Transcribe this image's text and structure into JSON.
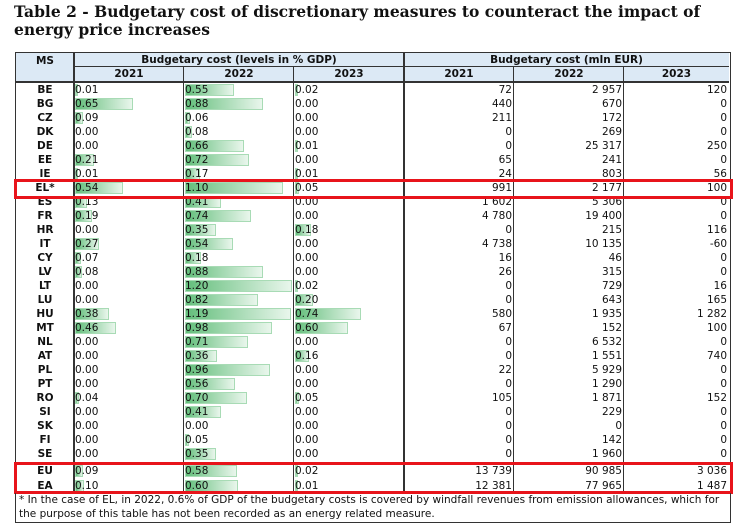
{
  "title": "Table 2 - Budgetary cost of discretionary measures to counteract the impact of energy price increases",
  "headers": {
    "ms": "MS",
    "pct_group": "Budgetary cost (levels in % GDP)",
    "mln_group": "Budgetary cost (mln EUR)",
    "years": [
      "2021",
      "2022",
      "2023"
    ]
  },
  "accent_color": "#e8141b",
  "bar_color": "#63be7b",
  "rows": [
    {
      "ms": "BE",
      "pct": [
        "0.01",
        "0.55",
        "0.02"
      ],
      "mln": [
        "72",
        "2 957",
        "120"
      ]
    },
    {
      "ms": "BG",
      "pct": [
        "0.65",
        "0.88",
        "0.00"
      ],
      "mln": [
        "440",
        "670",
        "0"
      ]
    },
    {
      "ms": "CZ",
      "pct": [
        "0.09",
        "0.06",
        "0.00"
      ],
      "mln": [
        "211",
        "172",
        "0"
      ]
    },
    {
      "ms": "DK",
      "pct": [
        "0.00",
        "0.08",
        "0.00"
      ],
      "mln": [
        "0",
        "269",
        "0"
      ]
    },
    {
      "ms": "DE",
      "pct": [
        "0.00",
        "0.66",
        "0.01"
      ],
      "mln": [
        "0",
        "25 317",
        "250"
      ]
    },
    {
      "ms": "EE",
      "pct": [
        "0.21",
        "0.72",
        "0.00"
      ],
      "mln": [
        "65",
        "241",
        "0"
      ]
    },
    {
      "ms": "IE",
      "pct": [
        "0.01",
        "0.17",
        "0.01"
      ],
      "mln": [
        "24",
        "803",
        "56"
      ]
    },
    {
      "ms": "EL*",
      "pct": [
        "0.54",
        "1.10",
        "0.05"
      ],
      "mln": [
        "991",
        "2 177",
        "100"
      ]
    },
    {
      "ms": "ES",
      "pct": [
        "0.13",
        "0.41",
        "0.00"
      ],
      "mln": [
        "1 602",
        "5 306",
        "0"
      ]
    },
    {
      "ms": "FR",
      "pct": [
        "0.19",
        "0.74",
        "0.00"
      ],
      "mln": [
        "4 780",
        "19 400",
        "0"
      ]
    },
    {
      "ms": "HR",
      "pct": [
        "0.00",
        "0.35",
        "0.18"
      ],
      "mln": [
        "0",
        "215",
        "116"
      ]
    },
    {
      "ms": "IT",
      "pct": [
        "0.27",
        "0.54",
        "0.00"
      ],
      "mln": [
        "4 738",
        "10 135",
        "-60"
      ]
    },
    {
      "ms": "CY",
      "pct": [
        "0.07",
        "0.18",
        "0.00"
      ],
      "mln": [
        "16",
        "46",
        "0"
      ]
    },
    {
      "ms": "LV",
      "pct": [
        "0.08",
        "0.88",
        "0.00"
      ],
      "mln": [
        "26",
        "315",
        "0"
      ]
    },
    {
      "ms": "LT",
      "pct": [
        "0.00",
        "1.20",
        "0.02"
      ],
      "mln": [
        "0",
        "729",
        "16"
      ]
    },
    {
      "ms": "LU",
      "pct": [
        "0.00",
        "0.82",
        "0.20"
      ],
      "mln": [
        "0",
        "643",
        "165"
      ]
    },
    {
      "ms": "HU",
      "pct": [
        "0.38",
        "1.19",
        "0.74"
      ],
      "mln": [
        "580",
        "1 935",
        "1 282"
      ]
    },
    {
      "ms": "MT",
      "pct": [
        "0.46",
        "0.98",
        "0.60"
      ],
      "mln": [
        "67",
        "152",
        "100"
      ]
    },
    {
      "ms": "NL",
      "pct": [
        "0.00",
        "0.71",
        "0.00"
      ],
      "mln": [
        "0",
        "6 532",
        "0"
      ]
    },
    {
      "ms": "AT",
      "pct": [
        "0.00",
        "0.36",
        "0.16"
      ],
      "mln": [
        "0",
        "1 551",
        "740"
      ]
    },
    {
      "ms": "PL",
      "pct": [
        "0.00",
        "0.96",
        "0.00"
      ],
      "mln": [
        "22",
        "5 929",
        "0"
      ]
    },
    {
      "ms": "PT",
      "pct": [
        "0.00",
        "0.56",
        "0.00"
      ],
      "mln": [
        "0",
        "1 290",
        "0"
      ]
    },
    {
      "ms": "RO",
      "pct": [
        "0.04",
        "0.70",
        "0.05"
      ],
      "mln": [
        "105",
        "1 871",
        "152"
      ]
    },
    {
      "ms": "SI",
      "pct": [
        "0.00",
        "0.41",
        "0.00"
      ],
      "mln": [
        "0",
        "229",
        "0"
      ]
    },
    {
      "ms": "SK",
      "pct": [
        "0.00",
        "0.00",
        "0.00"
      ],
      "mln": [
        "0",
        "0",
        "0"
      ]
    },
    {
      "ms": "FI",
      "pct": [
        "0.00",
        "0.05",
        "0.00"
      ],
      "mln": [
        "0",
        "142",
        "0"
      ]
    },
    {
      "ms": "SE",
      "pct": [
        "0.00",
        "0.35",
        "0.00"
      ],
      "mln": [
        "0",
        "1 960",
        "0"
      ]
    }
  ],
  "totals": [
    {
      "ms": "EU",
      "pct": [
        "0.09",
        "0.58",
        "0.02"
      ],
      "mln": [
        "13 739",
        "90 985",
        "3 036"
      ]
    },
    {
      "ms": "EA",
      "pct": [
        "0.10",
        "0.60",
        "0.01"
      ],
      "mln": [
        "12 381",
        "77 965",
        "1 487"
      ]
    }
  ],
  "footnote": "* In the case of EL, in 2022, 0.6% of GDP of the budgetary costs is covered by windfall revenues from emission allowances, which for the purpose of this table has not been recorded as an energy related measure."
}
